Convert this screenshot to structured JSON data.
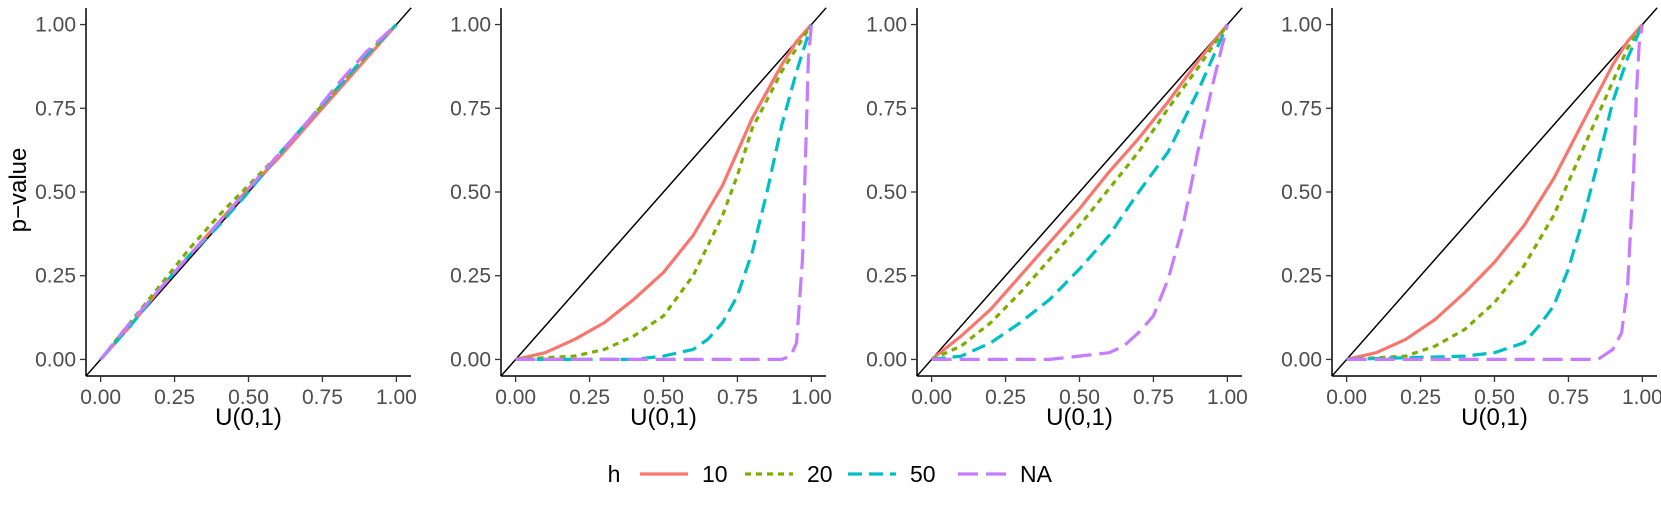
{
  "chart_data": {
    "type": "line",
    "layout": "4 panels in one row, shared legend below",
    "ylabel": "p−value",
    "xlabel": "U(0,1)",
    "xlim": [
      0,
      1
    ],
    "ylim": [
      0,
      1
    ],
    "ticks": [
      0,
      0.25,
      0.5,
      0.75,
      1
    ],
    "tick_labels": [
      "0.00",
      "0.25",
      "0.50",
      "0.75",
      "1.00"
    ],
    "reference_line": "y = x",
    "legend": {
      "title": "h",
      "position": "bottom",
      "entries": [
        {
          "label": "10",
          "color": "#F8766D",
          "dash": "solid"
        },
        {
          "label": "20",
          "color": "#7CAE00",
          "dash": "dotted"
        },
        {
          "label": "50",
          "color": "#00BFC4",
          "dash": "dashed"
        },
        {
          "label": "NA",
          "color": "#C77CFF",
          "dash": "longdash"
        }
      ]
    },
    "panels": [
      {
        "series": [
          {
            "name": "10",
            "x": [
              0,
              0.1,
              0.2,
              0.3,
              0.4,
              0.5,
              0.6,
              0.7,
              0.8,
              0.9,
              1.0
            ],
            "y": [
              0,
              0.1,
              0.21,
              0.31,
              0.41,
              0.51,
              0.6,
              0.7,
              0.8,
              0.9,
              1.0
            ]
          },
          {
            "name": "20",
            "x": [
              0,
              0.1,
              0.2,
              0.3,
              0.4,
              0.5,
              0.6,
              0.7,
              0.8,
              0.9,
              1.0
            ],
            "y": [
              0,
              0.11,
              0.22,
              0.33,
              0.43,
              0.52,
              0.61,
              0.71,
              0.81,
              0.91,
              1.0
            ]
          },
          {
            "name": "50",
            "x": [
              0,
              0.1,
              0.2,
              0.3,
              0.4,
              0.5,
              0.6,
              0.7,
              0.8,
              0.9,
              1.0
            ],
            "y": [
              0,
              0.1,
              0.21,
              0.31,
              0.4,
              0.5,
              0.61,
              0.71,
              0.81,
              0.91,
              1.0
            ]
          },
          {
            "name": "NA",
            "x": [
              0,
              0.1,
              0.2,
              0.3,
              0.4,
              0.5,
              0.6,
              0.7,
              0.8,
              0.9,
              1.0
            ],
            "y": [
              0,
              0.11,
              0.21,
              0.31,
              0.41,
              0.51,
              0.61,
              0.71,
              0.82,
              0.92,
              1.0
            ]
          }
        ]
      },
      {
        "series": [
          {
            "name": "10",
            "x": [
              0,
              0.1,
              0.2,
              0.3,
              0.4,
              0.5,
              0.6,
              0.7,
              0.8,
              0.9,
              0.95,
              1.0
            ],
            "y": [
              0,
              0.02,
              0.06,
              0.11,
              0.18,
              0.26,
              0.37,
              0.52,
              0.72,
              0.88,
              0.95,
              1.0
            ]
          },
          {
            "name": "20",
            "x": [
              0,
              0.2,
              0.3,
              0.4,
              0.5,
              0.6,
              0.7,
              0.75,
              0.8,
              0.9,
              0.95,
              1.0
            ],
            "y": [
              0,
              0.01,
              0.03,
              0.07,
              0.13,
              0.25,
              0.43,
              0.55,
              0.69,
              0.86,
              0.93,
              1.0
            ]
          },
          {
            "name": "50",
            "x": [
              0,
              0.4,
              0.5,
              0.6,
              0.65,
              0.7,
              0.75,
              0.8,
              0.85,
              0.9,
              0.95,
              1.0
            ],
            "y": [
              0,
              0.0,
              0.01,
              0.03,
              0.06,
              0.11,
              0.19,
              0.32,
              0.5,
              0.7,
              0.86,
              1.0
            ]
          },
          {
            "name": "NA",
            "x": [
              0,
              0.8,
              0.9,
              0.93,
              0.95,
              0.97,
              0.98,
              0.99,
              1.0
            ],
            "y": [
              0,
              0,
              0.0,
              0.01,
              0.05,
              0.3,
              0.6,
              0.9,
              1.0
            ]
          }
        ]
      },
      {
        "series": [
          {
            "name": "10",
            "x": [
              0,
              0.1,
              0.2,
              0.3,
              0.4,
              0.5,
              0.6,
              0.7,
              0.8,
              0.9,
              1.0
            ],
            "y": [
              0,
              0.07,
              0.15,
              0.25,
              0.35,
              0.45,
              0.56,
              0.66,
              0.77,
              0.89,
              1.0
            ]
          },
          {
            "name": "20",
            "x": [
              0,
              0.1,
              0.2,
              0.3,
              0.4,
              0.5,
              0.6,
              0.7,
              0.8,
              0.9,
              1.0
            ],
            "y": [
              0,
              0.04,
              0.11,
              0.2,
              0.3,
              0.4,
              0.51,
              0.62,
              0.75,
              0.87,
              1.0
            ]
          },
          {
            "name": "50",
            "x": [
              0,
              0.1,
              0.2,
              0.3,
              0.4,
              0.5,
              0.6,
              0.7,
              0.8,
              0.9,
              1.0
            ],
            "y": [
              0,
              0.01,
              0.05,
              0.11,
              0.18,
              0.27,
              0.37,
              0.5,
              0.62,
              0.8,
              1.0
            ]
          },
          {
            "name": "NA",
            "x": [
              0,
              0.4,
              0.5,
              0.6,
              0.65,
              0.7,
              0.75,
              0.8,
              0.85,
              0.9,
              0.95,
              1.0
            ],
            "y": [
              0,
              0.0,
              0.01,
              0.02,
              0.04,
              0.08,
              0.13,
              0.24,
              0.4,
              0.62,
              0.82,
              1.0
            ]
          }
        ]
      },
      {
        "series": [
          {
            "name": "10",
            "x": [
              0,
              0.1,
              0.2,
              0.3,
              0.4,
              0.5,
              0.6,
              0.7,
              0.8,
              0.9,
              0.95,
              1.0
            ],
            "y": [
              0,
              0.02,
              0.06,
              0.12,
              0.2,
              0.29,
              0.4,
              0.54,
              0.71,
              0.88,
              0.95,
              1.0
            ]
          },
          {
            "name": "20",
            "x": [
              0,
              0.2,
              0.3,
              0.4,
              0.5,
              0.6,
              0.7,
              0.8,
              0.9,
              0.95,
              1.0
            ],
            "y": [
              0,
              0.01,
              0.04,
              0.09,
              0.17,
              0.28,
              0.43,
              0.63,
              0.83,
              0.93,
              1.0
            ]
          },
          {
            "name": "50",
            "x": [
              0,
              0.4,
              0.5,
              0.6,
              0.65,
              0.7,
              0.75,
              0.8,
              0.85,
              0.9,
              0.95,
              1.0
            ],
            "y": [
              0,
              0.01,
              0.02,
              0.05,
              0.1,
              0.16,
              0.27,
              0.42,
              0.59,
              0.77,
              0.9,
              1.0
            ]
          },
          {
            "name": "NA",
            "x": [
              0,
              0.8,
              0.85,
              0.9,
              0.93,
              0.95,
              0.97,
              0.98,
              0.99,
              1.0
            ],
            "y": [
              0,
              0,
              0.0,
              0.03,
              0.08,
              0.22,
              0.55,
              0.8,
              0.95,
              1.0
            ]
          }
        ]
      }
    ]
  }
}
